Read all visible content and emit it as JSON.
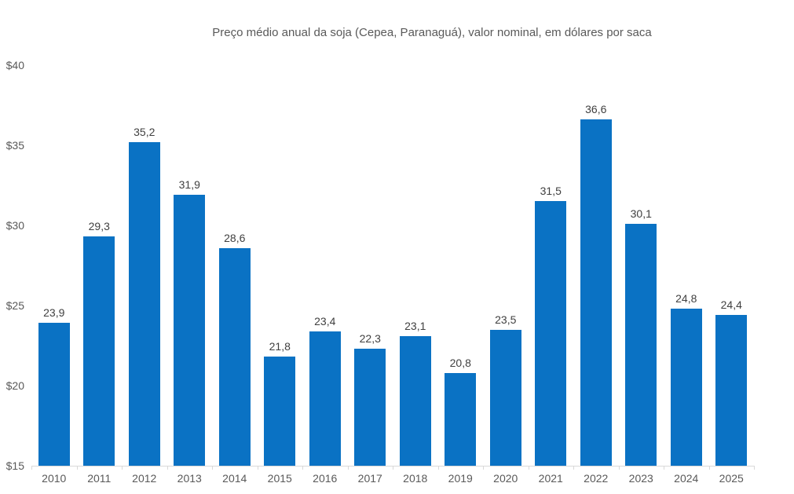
{
  "chart_data": {
    "type": "bar",
    "title": "Preço médio anual da soja (Cepea, Paranaguá), valor nominal, em dólares por saca",
    "categories": [
      "2010",
      "2011",
      "2012",
      "2013",
      "2014",
      "2015",
      "2016",
      "2017",
      "2018",
      "2019",
      "2020",
      "2021",
      "2022",
      "2023",
      "2024",
      "2025"
    ],
    "values": [
      23.9,
      29.3,
      35.2,
      31.9,
      28.6,
      21.8,
      23.4,
      22.3,
      23.1,
      20.8,
      23.5,
      31.5,
      36.6,
      30.1,
      24.8,
      24.4
    ],
    "value_labels": [
      "23,9",
      "29,3",
      "35,2",
      "31,9",
      "28,6",
      "21,8",
      "23,4",
      "22,3",
      "23,1",
      "20,8",
      "23,5",
      "31,5",
      "36,6",
      "30,1",
      "24,8",
      "24,4"
    ],
    "xlabel": "",
    "ylabel": "",
    "ylim": [
      15,
      40
    ],
    "yticks": [
      40,
      35,
      30,
      25,
      20,
      15
    ],
    "ytick_labels": [
      "$40",
      "$35",
      "$30",
      "$25",
      "$20",
      "$15"
    ],
    "grid": false,
    "legend": "none",
    "bar_color": "#0a72c4",
    "title_color": "#595959",
    "axis_label_color": "#595959",
    "value_label_color": "#404040",
    "axis_line_color": "#d9d9d9"
  }
}
